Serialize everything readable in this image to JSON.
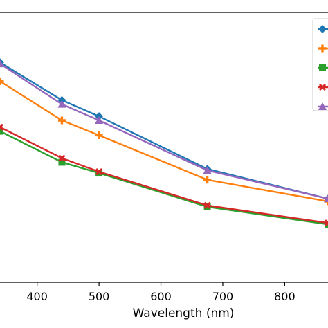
{
  "chart_data": {
    "type": "line",
    "title": "",
    "xlabel": "Wavelength (nm)",
    "ylabel": "",
    "x": [
      340,
      440,
      500,
      675,
      870
    ],
    "xlim": [
      340,
      870
    ],
    "xticks": [
      400,
      500,
      600,
      700,
      800
    ],
    "xtick_labels": [
      "400",
      "500",
      "600",
      "700",
      "800"
    ],
    "ylim": [
      0,
      1
    ],
    "series": [
      {
        "values": [
          0.815,
          0.675,
          0.615,
          0.42,
          0.31
        ],
        "marker": "diamond",
        "color": "#1f77b4"
      },
      {
        "values": [
          0.745,
          0.6,
          0.545,
          0.38,
          0.3
        ],
        "marker": "plus",
        "color": "#ff7f0e"
      },
      {
        "values": [
          0.56,
          0.445,
          0.405,
          0.28,
          0.215
        ],
        "marker": "square",
        "color": "#2ca02c"
      },
      {
        "values": [
          0.575,
          0.46,
          0.41,
          0.285,
          0.22
        ],
        "marker": "x",
        "color": "#d62728"
      },
      {
        "values": [
          0.81,
          0.66,
          0.6,
          0.415,
          0.31
        ],
        "marker": "triangle",
        "color": "#9467bd"
      }
    ],
    "grid": false,
    "legend_location": "top-right"
  }
}
